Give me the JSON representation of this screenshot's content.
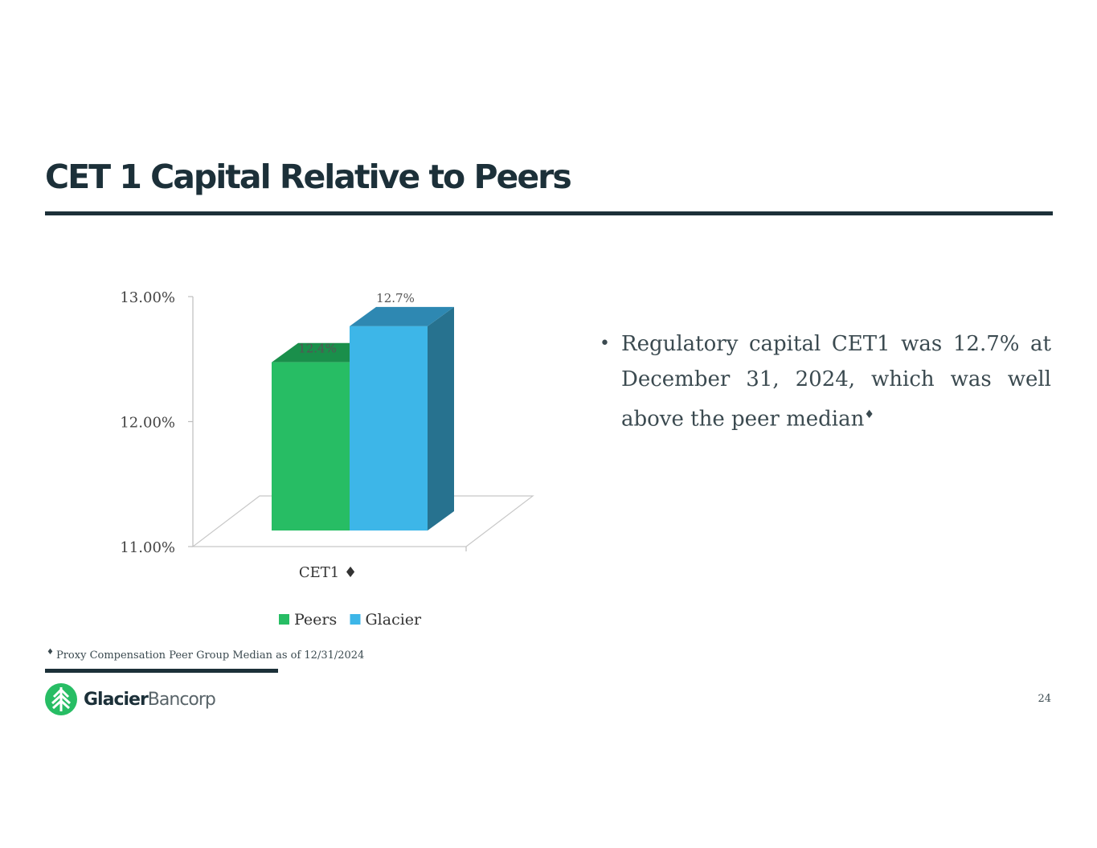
{
  "slide": {
    "title": "CET 1 Capital Relative to Peers",
    "bullet": "Regulatory capital CET1 was 12.7% at December 31, 2024, which was well above the peer median",
    "bullet_mark": "♦",
    "footnote_mark": "♦",
    "footnote": "Proxy Compensation Peer Group Median as of 12/31/2024",
    "page_number": "24",
    "logo": {
      "name_bold": "Glacier",
      "name_light": "Bancorp"
    }
  },
  "chart_data": {
    "type": "bar",
    "style": "3d-clustered",
    "categories": [
      "CET1 ♦"
    ],
    "series": [
      {
        "name": "Peers",
        "values": [
          12.4
        ],
        "label": "12.4%",
        "color": "#27bd64",
        "top_color": "#1a8f4b"
      },
      {
        "name": "Glacier",
        "values": [
          12.7
        ],
        "label": "12.7%",
        "color": "#3db6e8",
        "top_color": "#2e88b2",
        "side_color": "#27728f"
      }
    ],
    "y_ticks": [
      "11.00%",
      "12.00%",
      "13.00%"
    ],
    "y_tick_values": [
      11,
      12,
      13
    ],
    "ylim": [
      11,
      13
    ],
    "legend_position": "bottom"
  }
}
